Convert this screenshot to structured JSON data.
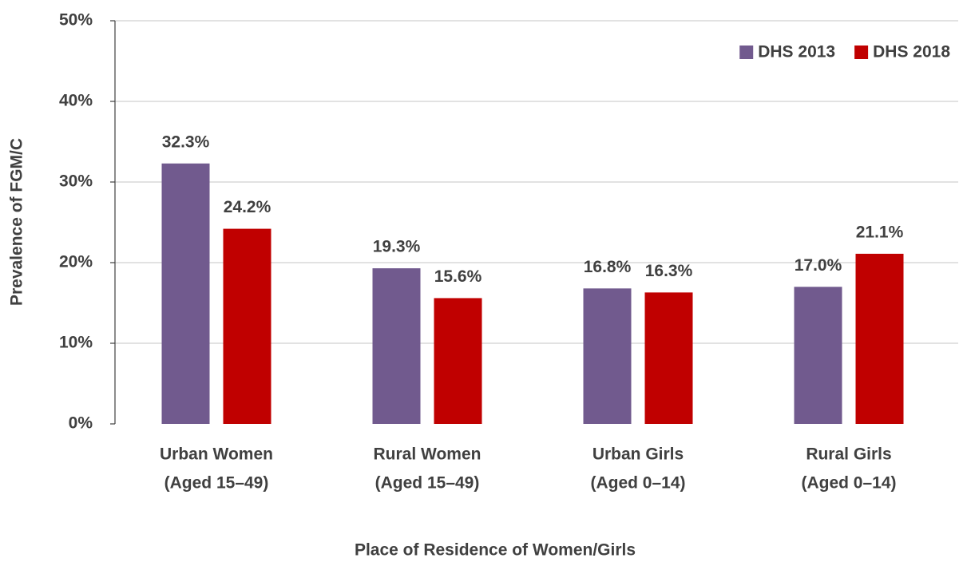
{
  "chart_data": {
    "type": "bar",
    "x_label": "Place of Residence of Women/Girls",
    "y_label": "Prevalence of FGM/C",
    "categories": [
      [
        "Urban Women",
        "(Aged 15–49)"
      ],
      [
        "Rural Women",
        "(Aged 15–49)"
      ],
      [
        "Urban Girls",
        "(Aged 0–14)"
      ],
      [
        "Rural Girls",
        "(Aged 0–14)"
      ]
    ],
    "series": [
      {
        "name": "DHS 2013",
        "color": "#715a8e",
        "values": [
          32.3,
          19.3,
          16.8,
          17.0
        ],
        "value_labels": [
          "32.3%",
          "19.3%",
          "16.8%",
          "17.0%"
        ]
      },
      {
        "name": "DHS 2018",
        "color": "#c00000",
        "values": [
          24.2,
          15.6,
          16.3,
          21.1
        ],
        "value_labels": [
          "24.2%",
          "15.6%",
          "16.3%",
          "21.1%"
        ]
      }
    ],
    "ylim": [
      0,
      50
    ],
    "yticks": [
      {
        "value": 0,
        "label": "0%"
      },
      {
        "value": 10,
        "label": "10%"
      },
      {
        "value": 20,
        "label": "20%"
      },
      {
        "value": 30,
        "label": "30%"
      },
      {
        "value": 40,
        "label": "40%"
      },
      {
        "value": 50,
        "label": "50%"
      }
    ],
    "grid": true,
    "legend": "top-right"
  }
}
